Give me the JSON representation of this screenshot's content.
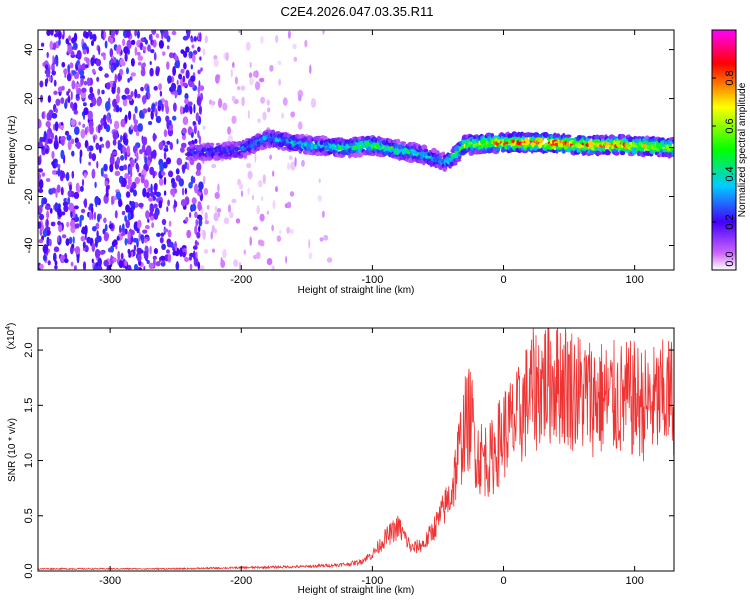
{
  "figure_title": "C2E4.2026.047.03.35.R11",
  "chart_data": [
    {
      "type": "heatmap",
      "title": "",
      "xlabel": "Height of straight line (km)",
      "ylabel": "Frequency (Hz)",
      "xlim": [
        -355,
        130
      ],
      "ylim": [
        -50,
        48
      ],
      "x_ticks": [
        -300,
        -200,
        -100,
        0,
        100
      ],
      "y_ticks": [
        -40,
        -20,
        0,
        20,
        40
      ],
      "colorbar": {
        "label": "Normalized spectral amplitude",
        "range": [
          0,
          1
        ],
        "ticks": [
          0.0,
          0.2,
          0.4,
          0.6,
          0.8
        ],
        "tick_labels": [
          "0.0",
          "0.2",
          "0.4",
          "0.6",
          "0.8"
        ],
        "colors": [
          "#ffffff",
          "#cc66ff",
          "#4400ff",
          "#00ccff",
          "#00ff00",
          "#ffff00",
          "#ff0000",
          "#ff00ff"
        ]
      },
      "ridge": {
        "x": [
          -235,
          -200,
          -180,
          -150,
          -120,
          -100,
          -80,
          -60,
          -45,
          -38,
          -30,
          0,
          30,
          60,
          90,
          130
        ],
        "y": [
          -2,
          -1,
          4,
          1,
          0,
          1,
          -1,
          -3,
          -6,
          -4,
          1,
          2,
          2,
          1,
          1,
          0
        ],
        "peak_amplitude": [
          0.25,
          0.3,
          0.35,
          0.4,
          0.45,
          0.55,
          0.5,
          0.4,
          0.35,
          0.5,
          0.6,
          0.85,
          0.9,
          0.85,
          0.8,
          0.65
        ]
      },
      "noise_region_x": [
        -355,
        -230
      ]
    },
    {
      "type": "line",
      "title": "",
      "xlabel": "Height of straight line (km)",
      "ylabel": "SNR (10 * v/v)",
      "multiplier": "(x10",
      "multiplier_exp": "4",
      "multiplier_close": ")",
      "xlim": [
        -355,
        130
      ],
      "ylim": [
        0,
        2.2
      ],
      "x_ticks": [
        -300,
        -200,
        -100,
        0,
        100
      ],
      "y_ticks": [
        0.0,
        0.5,
        1.0,
        1.5,
        2.0
      ],
      "y_tick_labels": [
        "0.0",
        "0.5",
        "1.0",
        "1.5",
        "2.0"
      ],
      "series": [
        {
          "color": "#ee3333",
          "x": [
            -355,
            -300,
            -250,
            -200,
            -150,
            -120,
            -110,
            -100,
            -90,
            -80,
            -70,
            -60,
            -50,
            -40,
            -35,
            -30,
            -25,
            -20,
            -10,
            0,
            10,
            20,
            30,
            40,
            60,
            80,
            100,
            110,
            120,
            130
          ],
          "y": [
            0.02,
            0.02,
            0.02,
            0.03,
            0.04,
            0.06,
            0.08,
            0.15,
            0.3,
            0.4,
            0.2,
            0.25,
            0.45,
            0.7,
            1.0,
            1.3,
            1.4,
            1.05,
            1.0,
            1.25,
            1.35,
            1.6,
            1.7,
            1.75,
            1.6,
            1.55,
            1.55,
            1.5,
            1.55,
            1.6
          ]
        }
      ]
    }
  ]
}
